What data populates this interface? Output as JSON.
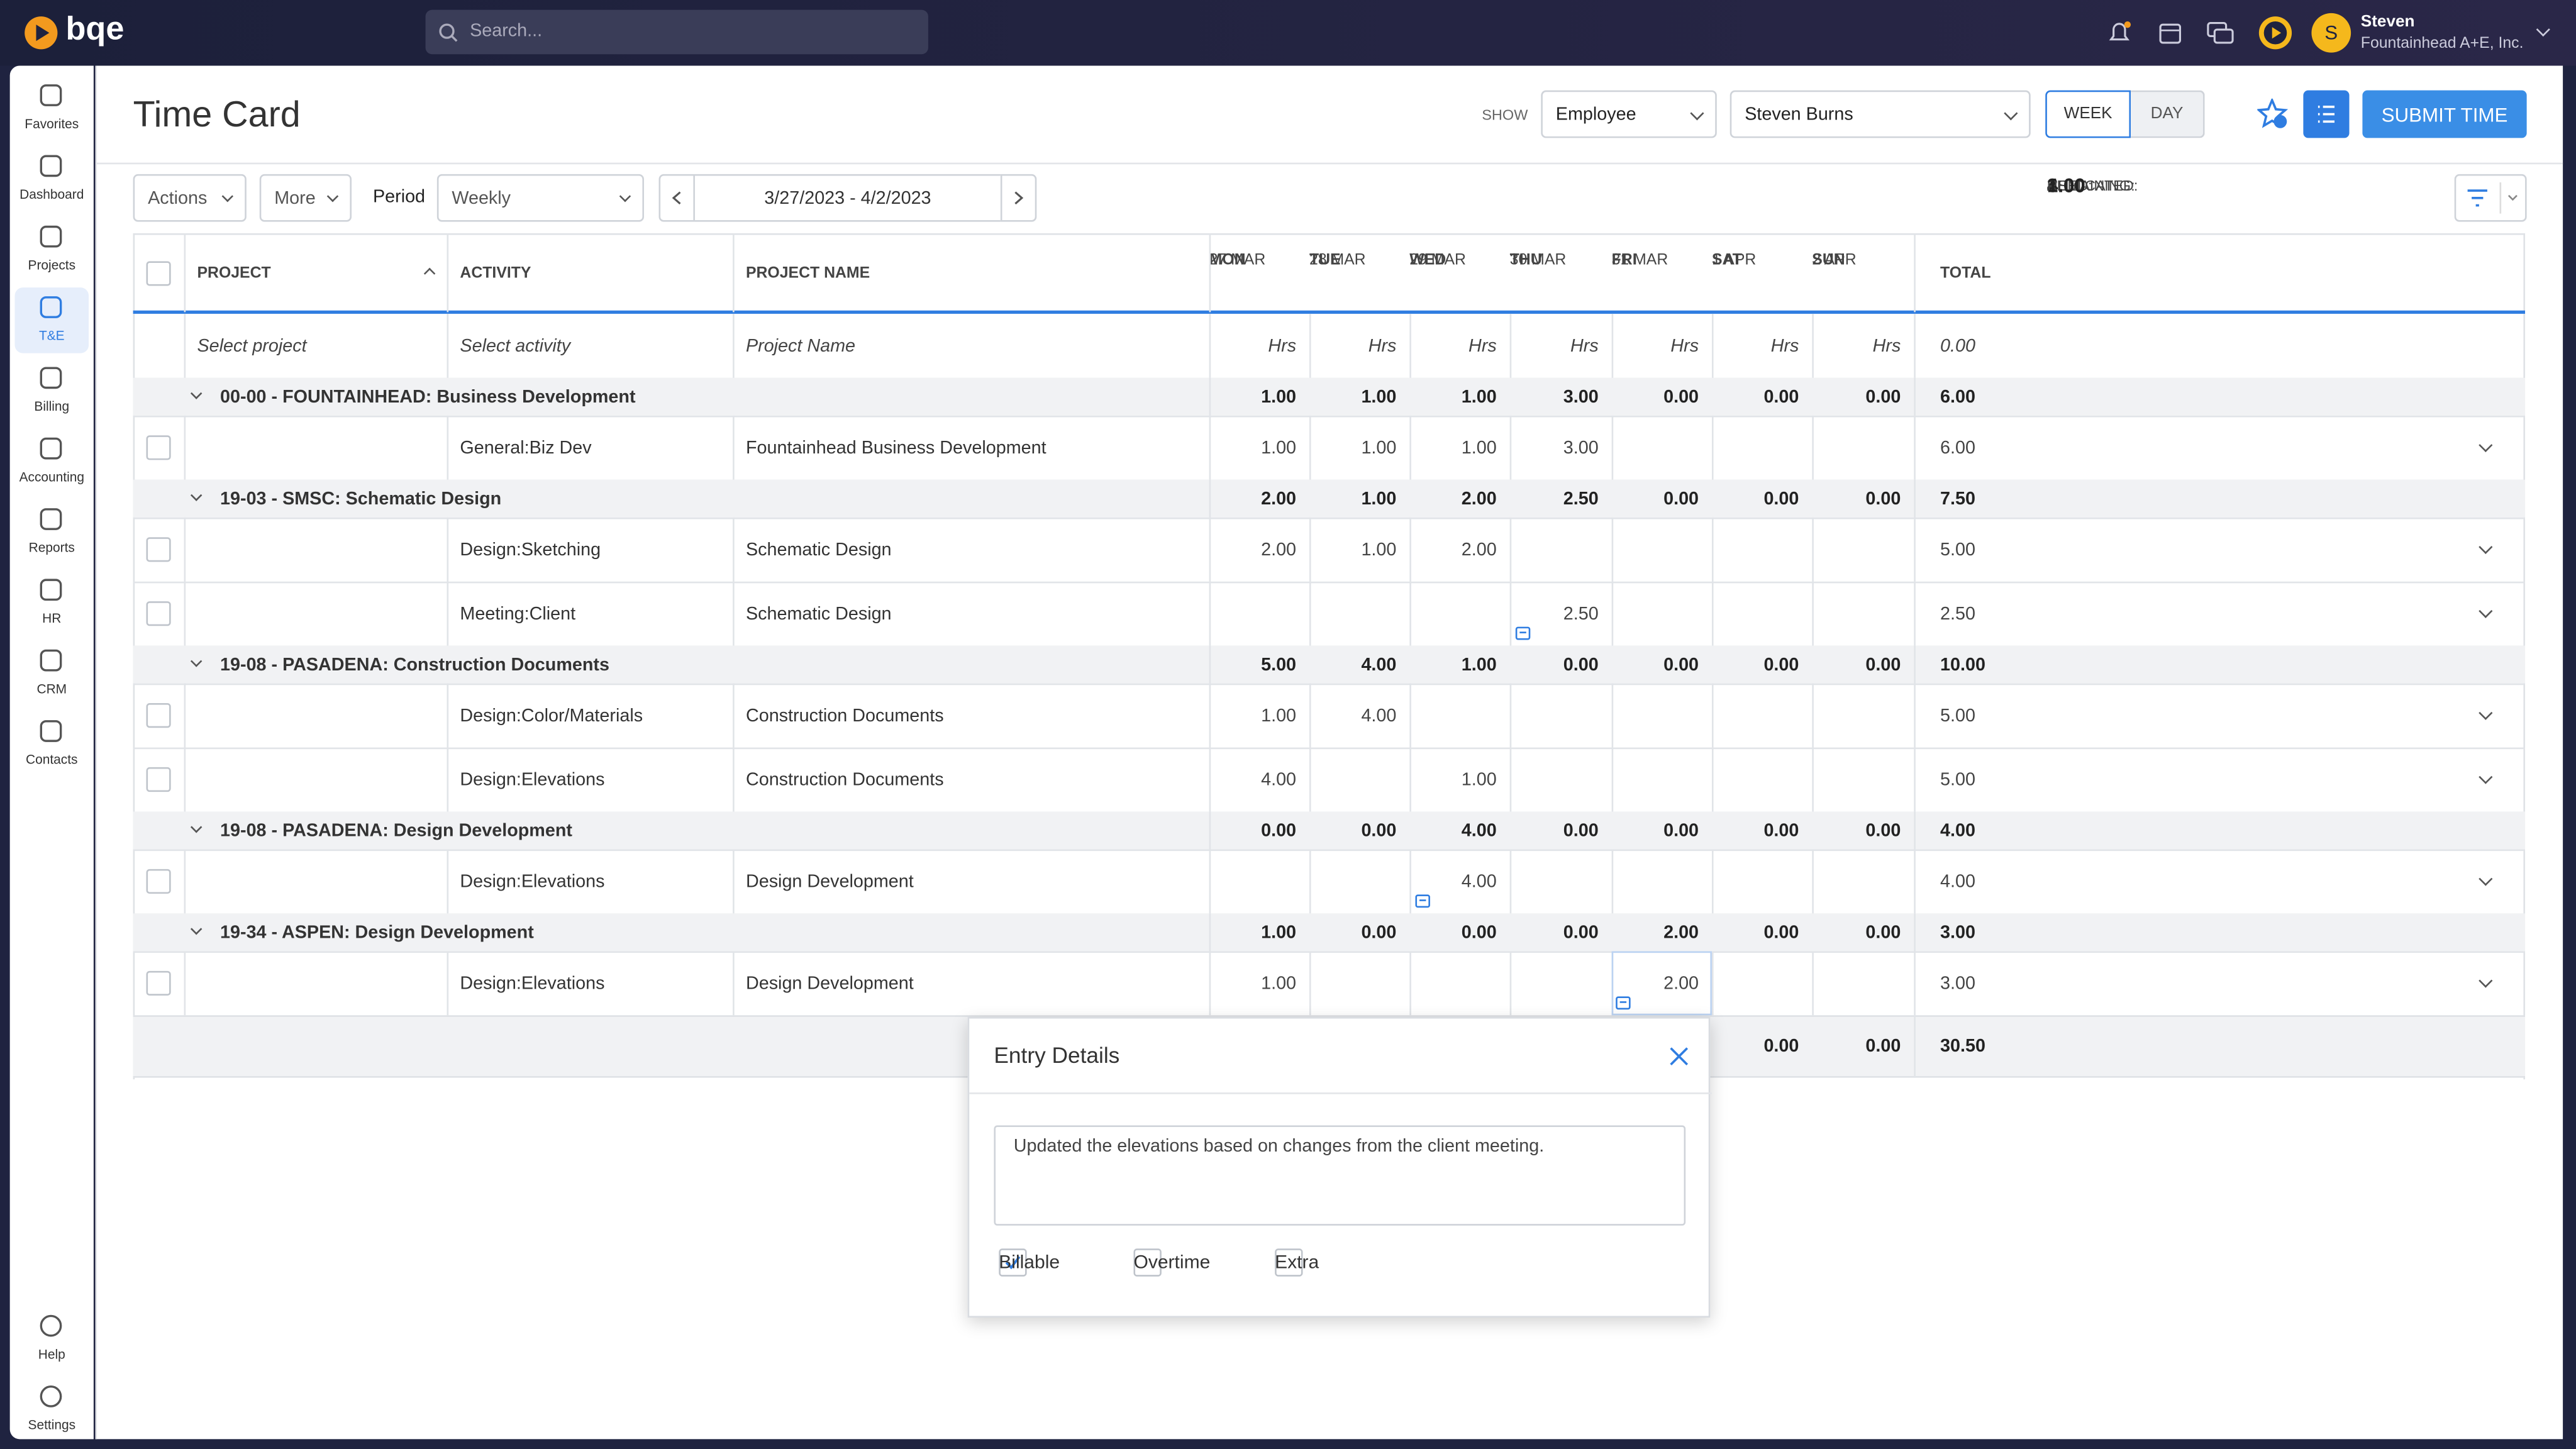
{
  "topbar": {
    "brand": "bqe",
    "search_placeholder": "Search...",
    "user_name": "Steven",
    "user_company": "Fountainhead A+E, Inc.",
    "avatar_initial": "S"
  },
  "sidebar": {
    "items": [
      "Favorites",
      "Dashboard",
      "Projects",
      "T&E",
      "Billing",
      "Accounting",
      "Reports",
      "HR",
      "CRM",
      "Contacts"
    ],
    "active": 3,
    "bottom": [
      "Help",
      "Settings"
    ]
  },
  "header": {
    "title": "Time Card",
    "show_label": "SHOW",
    "show_value": "Employee",
    "employee": "Steven Burns",
    "week": "WEEK",
    "day": "DAY",
    "submit": "SUBMIT TIME"
  },
  "toolbar": {
    "actions": "Actions",
    "more": "More",
    "period_label": "Period",
    "period": "Weekly",
    "date_range": "3/27/2023 - 4/2/2023",
    "allocated_label": "ALLOCATED:",
    "allocated": "4.00",
    "used_label": "USED:",
    "used": "3.00",
    "remaining_label": "REMAINING:",
    "remaining": "1.00"
  },
  "table": {
    "columns": [
      "PROJECT",
      "ACTIVITY",
      "PROJECT NAME"
    ],
    "days": [
      {
        "dow": "MON",
        "date": "27 MAR"
      },
      {
        "dow": "TUE",
        "date": "28 MAR"
      },
      {
        "dow": "WED",
        "date": "29 MAR"
      },
      {
        "dow": "THU",
        "date": "30 MAR"
      },
      {
        "dow": "FRI",
        "date": "31 MAR"
      },
      {
        "dow": "SAT",
        "date": "1 APR"
      },
      {
        "dow": "SUN",
        "date": "2 APR"
      }
    ],
    "total_label": "TOTAL",
    "entry_row": {
      "project": "Select project",
      "activity": "Select activity",
      "project_name": "Project Name",
      "hrs": "Hrs",
      "total": "0.00"
    },
    "groups": [
      {
        "title": "00-00 - FOUNTAINHEAD: Business Development",
        "totals": [
          "1.00",
          "1.00",
          "1.00",
          "3.00",
          "0.00",
          "0.00",
          "0.00"
        ],
        "total": "6.00",
        "rows": [
          {
            "activity": "General:Biz Dev",
            "project_name": "Fountainhead Business Development",
            "hours": [
              "1.00",
              "1.00",
              "1.00",
              "3.00",
              null,
              null,
              null
            ],
            "total": "6.00"
          }
        ]
      },
      {
        "title": "19-03 - SMSC: Schematic Design",
        "totals": [
          "2.00",
          "1.00",
          "2.00",
          "2.50",
          "0.00",
          "0.00",
          "0.00"
        ],
        "total": "7.50",
        "rows": [
          {
            "activity": "Design:Sketching",
            "project_name": "Schematic Design",
            "hours": [
              "2.00",
              "1.00",
              "2.00",
              null,
              null,
              null,
              null
            ],
            "total": "5.00"
          },
          {
            "activity": "Meeting:Client",
            "project_name": "Schematic Design",
            "hours": [
              null,
              null,
              null,
              "2.50",
              null,
              null,
              null
            ],
            "total": "2.50"
          }
        ]
      },
      {
        "title": "19-08 - PASADENA: Construction Documents",
        "totals": [
          "5.00",
          "4.00",
          "1.00",
          "0.00",
          "0.00",
          "0.00",
          "0.00"
        ],
        "total": "10.00",
        "rows": [
          {
            "activity": "Design:Color/Materials",
            "project_name": "Construction Documents",
            "hours": [
              "1.00",
              "4.00",
              null,
              null,
              null,
              null,
              null
            ],
            "total": "5.00"
          },
          {
            "activity": "Design:Elevations",
            "project_name": "Construction Documents",
            "hours": [
              "4.00",
              null,
              "1.00",
              null,
              null,
              null,
              null
            ],
            "total": "5.00"
          }
        ]
      },
      {
        "title": "19-08 - PASADENA: Design Development",
        "totals": [
          "0.00",
          "0.00",
          "4.00",
          "0.00",
          "0.00",
          "0.00",
          "0.00"
        ],
        "total": "4.00",
        "rows": [
          {
            "activity": "Design:Elevations",
            "project_name": "Design Development",
            "hours": [
              null,
              null,
              "4.00",
              null,
              null,
              null,
              null
            ],
            "total": "4.00"
          }
        ]
      },
      {
        "title": "19-34 - ASPEN: Design Development",
        "totals": [
          "1.00",
          "0.00",
          "0.00",
          "0.00",
          "2.00",
          "0.00",
          "0.00"
        ],
        "total": "3.00",
        "rows": [
          {
            "activity": "Design:Elevations",
            "project_name": "Design Development",
            "hours": [
              "1.00",
              null,
              null,
              null,
              "2.00",
              null,
              null
            ],
            "total": "3.00"
          }
        ]
      }
    ],
    "footer": {
      "day_totals": [
        null,
        null,
        null,
        null,
        null,
        "0.00",
        "0.00"
      ],
      "total": "30.50"
    }
  },
  "popup": {
    "title": "Entry Details",
    "note": "Updated the elevations based on changes from the client meeting.",
    "options": [
      {
        "label": "Billable",
        "checked": true
      },
      {
        "label": "Overtime",
        "checked": false
      },
      {
        "label": "Extra",
        "checked": false
      }
    ]
  }
}
